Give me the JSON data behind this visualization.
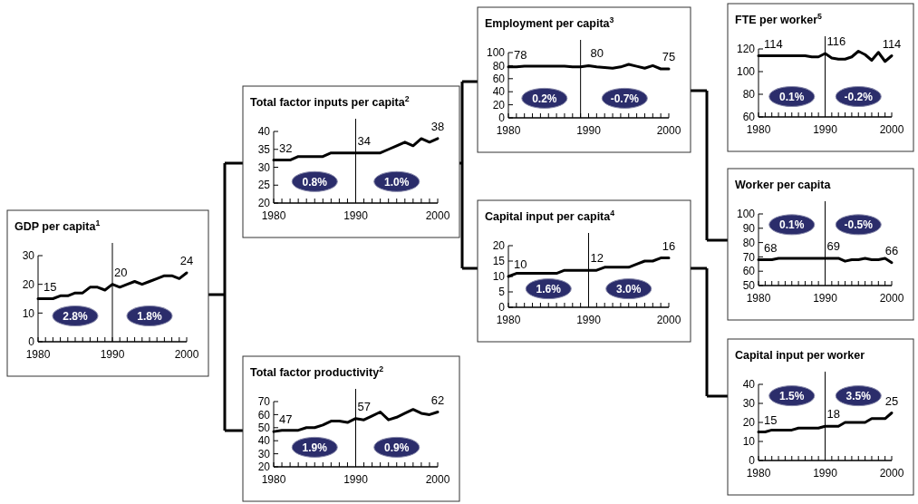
{
  "chart_data": [
    {
      "type": "line",
      "title": "GDP per capita$^{1}$",
      "x": [
        1980,
        1981,
        1982,
        1983,
        1984,
        1985,
        1986,
        1987,
        1988,
        1989,
        1990,
        1991,
        1992,
        1993,
        1994,
        1995,
        1996,
        1997,
        1998,
        1999,
        2000
      ],
      "values": [
        15,
        15,
        15,
        16,
        16,
        17,
        17,
        19,
        19,
        18,
        20,
        19,
        20,
        21,
        20,
        21,
        22,
        23,
        23,
        22,
        24
      ],
      "color": "#000000",
      "xlim": [
        1980,
        2000
      ],
      "ylim": [
        0,
        30
      ],
      "yticks": [
        0,
        10,
        20,
        30
      ],
      "xticks": [
        1980,
        {
          "value": 1981,
          "label": null
        },
        {
          "value": 1982,
          "label": null
        },
        {
          "value": 1983,
          "label": null
        },
        {
          "value": 1984,
          "label": null
        },
        {
          "value": 1985,
          "label": null
        },
        {
          "value": 1986,
          "label": null
        },
        {
          "value": 1987,
          "label": null
        },
        {
          "value": 1988,
          "label": null
        },
        {
          "value": 1989,
          "label": null
        },
        1990,
        {
          "value": 1991,
          "label": null
        },
        {
          "value": 1992,
          "label": null
        },
        {
          "value": 1993,
          "label": null
        },
        {
          "value": 1994,
          "label": null
        },
        {
          "value": 1995,
          "label": null
        },
        {
          "value": 1996,
          "label": null
        },
        {
          "value": 1997,
          "label": null
        },
        {
          "value": 1998,
          "label": null
        },
        {
          "value": 1999,
          "label": null
        },
        2000
      ],
      "ref_lines": [
        {
          "axis": "x",
          "value": 1990
        }
      ],
      "annotations": [
        {
          "text": "15",
          "x": 1980,
          "y": 15
        },
        {
          "text": "20",
          "x": 1990,
          "y": 20
        },
        {
          "text": "24",
          "x": 2000,
          "y": 24
        },
        "2.8%",
        "1.8%"
      ]
    },
    {
      "type": "line",
      "title": "Total factor inputs per capita$^{2}$",
      "x": [
        1980,
        1981,
        1982,
        1983,
        1984,
        1985,
        1986,
        1987,
        1988,
        1989,
        1990,
        1991,
        1992,
        1993,
        1994,
        1995,
        1996,
        1997,
        1998,
        1999,
        2000
      ],
      "values": [
        32,
        32,
        32,
        33,
        33,
        33,
        33,
        34,
        34,
        34,
        34,
        34,
        34,
        34,
        35,
        36,
        37,
        36,
        38,
        37,
        38
      ],
      "color": "#000000",
      "xlim": [
        1980,
        2000
      ],
      "ylim": [
        20,
        40
      ],
      "yticks": [
        20,
        25,
        30,
        35,
        40
      ],
      "xticks": [
        1980,
        {
          "value": 1981,
          "label": null
        },
        {
          "value": 1982,
          "label": null
        },
        {
          "value": 1983,
          "label": null
        },
        {
          "value": 1984,
          "label": null
        },
        {
          "value": 1985,
          "label": null
        },
        {
          "value": 1986,
          "label": null
        },
        {
          "value": 1987,
          "label": null
        },
        {
          "value": 1988,
          "label": null
        },
        {
          "value": 1989,
          "label": null
        },
        1990,
        {
          "value": 1991,
          "label": null
        },
        {
          "value": 1992,
          "label": null
        },
        {
          "value": 1993,
          "label": null
        },
        {
          "value": 1994,
          "label": null
        },
        {
          "value": 1995,
          "label": null
        },
        {
          "value": 1996,
          "label": null
        },
        {
          "value": 1997,
          "label": null
        },
        {
          "value": 1998,
          "label": null
        },
        {
          "value": 1999,
          "label": null
        },
        2000
      ],
      "ref_lines": [
        {
          "axis": "x",
          "value": 1990
        }
      ],
      "annotations": [
        {
          "text": "32",
          "x": 1980,
          "y": 32
        },
        {
          "text": "34",
          "x": 1990,
          "y": 34
        },
        {
          "text": "38",
          "x": 2000,
          "y": 38
        },
        "0.8%",
        "1.0%"
      ]
    },
    {
      "type": "line",
      "title": "Total factor productivity$^{2}$",
      "x": [
        1980,
        1981,
        1982,
        1983,
        1984,
        1985,
        1986,
        1987,
        1988,
        1989,
        1990,
        1991,
        1992,
        1993,
        1994,
        1995,
        1996,
        1997,
        1998,
        1999,
        2000
      ],
      "values": [
        47,
        48,
        48,
        48,
        50,
        50,
        52,
        55,
        55,
        54,
        57,
        56,
        59,
        62,
        56,
        58,
        61,
        64,
        61,
        60,
        62
      ],
      "color": "#000000",
      "xlim": [
        1980,
        2000
      ],
      "ylim": [
        20,
        70
      ],
      "yticks": [
        20,
        30,
        40,
        50,
        60,
        70
      ],
      "xticks": [
        1980,
        {
          "value": 1981,
          "label": null
        },
        {
          "value": 1982,
          "label": null
        },
        {
          "value": 1983,
          "label": null
        },
        {
          "value": 1984,
          "label": null
        },
        {
          "value": 1985,
          "label": null
        },
        {
          "value": 1986,
          "label": null
        },
        {
          "value": 1987,
          "label": null
        },
        {
          "value": 1988,
          "label": null
        },
        {
          "value": 1989,
          "label": null
        },
        1990,
        {
          "value": 1991,
          "label": null
        },
        {
          "value": 1992,
          "label": null
        },
        {
          "value": 1993,
          "label": null
        },
        {
          "value": 1994,
          "label": null
        },
        {
          "value": 1995,
          "label": null
        },
        {
          "value": 1996,
          "label": null
        },
        {
          "value": 1997,
          "label": null
        },
        {
          "value": 1998,
          "label": null
        },
        {
          "value": 1999,
          "label": null
        },
        2000
      ],
      "ref_lines": [
        {
          "axis": "x",
          "value": 1990
        }
      ],
      "annotations": [
        {
          "text": "47",
          "x": 1980,
          "y": 47
        },
        {
          "text": "57",
          "x": 1990,
          "y": 57
        },
        {
          "text": "62",
          "x": 2000,
          "y": 62
        },
        "1.9%",
        "0.9%"
      ]
    },
    {
      "type": "line",
      "title": "Employment per capita$^{3}$",
      "x": [
        1980,
        1981,
        1982,
        1983,
        1984,
        1985,
        1986,
        1987,
        1988,
        1989,
        1990,
        1991,
        1992,
        1993,
        1994,
        1995,
        1996,
        1997,
        1998,
        1999,
        2000
      ],
      "values": [
        78,
        78,
        79,
        79,
        79,
        79,
        79,
        79,
        78,
        78,
        80,
        78,
        77,
        76,
        78,
        82,
        79,
        76,
        80,
        75,
        75
      ],
      "color": "#000000",
      "xlim": [
        1980,
        2000
      ],
      "ylim": [
        0,
        100
      ],
      "yticks": [
        0,
        20,
        40,
        60,
        80,
        100
      ],
      "xticks": [
        1980,
        {
          "value": 1981,
          "label": null
        },
        {
          "value": 1982,
          "label": null
        },
        {
          "value": 1983,
          "label": null
        },
        {
          "value": 1984,
          "label": null
        },
        {
          "value": 1985,
          "label": null
        },
        {
          "value": 1986,
          "label": null
        },
        {
          "value": 1987,
          "label": null
        },
        {
          "value": 1988,
          "label": null
        },
        {
          "value": 1989,
          "label": null
        },
        1990,
        {
          "value": 1991,
          "label": null
        },
        {
          "value": 1992,
          "label": null
        },
        {
          "value": 1993,
          "label": null
        },
        {
          "value": 1994,
          "label": null
        },
        {
          "value": 1995,
          "label": null
        },
        {
          "value": 1996,
          "label": null
        },
        {
          "value": 1997,
          "label": null
        },
        {
          "value": 1998,
          "label": null
        },
        {
          "value": 1999,
          "label": null
        },
        2000
      ],
      "ref_lines": [
        {
          "axis": "x",
          "value": 1989
        }
      ],
      "annotations": [
        {
          "text": "78",
          "x": 1980,
          "y": 78
        },
        {
          "text": "80",
          "x": 1990,
          "y": 80
        },
        {
          "text": "75",
          "x": 2000,
          "y": 75
        },
        "0.2%",
        "-0.7%"
      ]
    },
    {
      "type": "line",
      "title": "Capital input per capita$^{4}$",
      "x": [
        1980,
        1981,
        1982,
        1983,
        1984,
        1985,
        1986,
        1987,
        1988,
        1989,
        1990,
        1991,
        1992,
        1993,
        1994,
        1995,
        1996,
        1997,
        1998,
        1999,
        2000
      ],
      "values": [
        10,
        11,
        11,
        11,
        11,
        11,
        11,
        12,
        12,
        12,
        12,
        12,
        13,
        13,
        13,
        13,
        14,
        15,
        15,
        16,
        16
      ],
      "color": "#000000",
      "xlim": [
        1980,
        2000
      ],
      "ylim": [
        0,
        20
      ],
      "yticks": [
        0,
        5,
        10,
        15,
        20
      ],
      "xticks": [
        1980,
        {
          "value": 1981,
          "label": null
        },
        {
          "value": 1982,
          "label": null
        },
        {
          "value": 1983,
          "label": null
        },
        {
          "value": 1984,
          "label": null
        },
        {
          "value": 1985,
          "label": null
        },
        {
          "value": 1986,
          "label": null
        },
        {
          "value": 1987,
          "label": null
        },
        {
          "value": 1988,
          "label": null
        },
        {
          "value": 1989,
          "label": null
        },
        1990,
        {
          "value": 1991,
          "label": null
        },
        {
          "value": 1992,
          "label": null
        },
        {
          "value": 1993,
          "label": null
        },
        {
          "value": 1994,
          "label": null
        },
        {
          "value": 1995,
          "label": null
        },
        {
          "value": 1996,
          "label": null
        },
        {
          "value": 1997,
          "label": null
        },
        {
          "value": 1998,
          "label": null
        },
        {
          "value": 1999,
          "label": null
        },
        2000
      ],
      "ref_lines": [
        {
          "axis": "x",
          "value": 1990
        }
      ],
      "annotations": [
        {
          "text": "10",
          "x": 1980,
          "y": 10
        },
        {
          "text": "12",
          "x": 1990,
          "y": 12
        },
        {
          "text": "16",
          "x": 2000,
          "y": 16
        },
        "1.6%",
        "3.0%"
      ]
    },
    {
      "type": "line",
      "title": "FTE per worker$^{5}$",
      "x": [
        1980,
        1981,
        1982,
        1983,
        1984,
        1985,
        1986,
        1987,
        1988,
        1989,
        1990,
        1991,
        1992,
        1993,
        1994,
        1995,
        1996,
        1997,
        1998,
        1999,
        2000
      ],
      "values": [
        114,
        114,
        114,
        114,
        114,
        114,
        114,
        114,
        113,
        113,
        116,
        112,
        111,
        111,
        113,
        118,
        115,
        110,
        117,
        109,
        114
      ],
      "color": "#000000",
      "xlim": [
        1980,
        2000
      ],
      "ylim": [
        60,
        120
      ],
      "yticks": [
        60,
        80,
        100,
        120
      ],
      "xticks": [
        1980,
        {
          "value": 1981,
          "label": null
        },
        {
          "value": 1982,
          "label": null
        },
        {
          "value": 1983,
          "label": null
        },
        {
          "value": 1984,
          "label": null
        },
        {
          "value": 1985,
          "label": null
        },
        {
          "value": 1986,
          "label": null
        },
        {
          "value": 1987,
          "label": null
        },
        {
          "value": 1988,
          "label": null
        },
        {
          "value": 1989,
          "label": null
        },
        1990,
        {
          "value": 1991,
          "label": null
        },
        {
          "value": 1992,
          "label": null
        },
        {
          "value": 1993,
          "label": null
        },
        {
          "value": 1994,
          "label": null
        },
        {
          "value": 1995,
          "label": null
        },
        {
          "value": 1996,
          "label": null
        },
        {
          "value": 1997,
          "label": null
        },
        {
          "value": 1998,
          "label": null
        },
        {
          "value": 1999,
          "label": null
        },
        2000
      ],
      "ref_lines": [
        {
          "axis": "x",
          "value": 1990
        }
      ],
      "annotations": [
        {
          "text": "114",
          "x": 1980,
          "y": 114
        },
        {
          "text": "116",
          "x": 1990,
          "y": 116
        },
        {
          "text": "114",
          "x": 2000,
          "y": 114
        },
        "0.1%",
        "-0.2%"
      ]
    },
    {
      "type": "line",
      "title": "Worker per capita",
      "x": [
        1980,
        1981,
        1982,
        1983,
        1984,
        1985,
        1986,
        1987,
        1988,
        1989,
        1990,
        1991,
        1992,
        1993,
        1994,
        1995,
        1996,
        1997,
        1998,
        1999,
        2000
      ],
      "values": [
        68,
        68,
        68,
        69,
        69,
        69,
        69,
        69,
        69,
        69,
        69,
        69,
        69,
        67,
        68,
        68,
        69,
        68,
        68,
        69,
        66
      ],
      "color": "#000000",
      "xlim": [
        1980,
        2000
      ],
      "ylim": [
        50,
        100
      ],
      "yticks": [
        50,
        60,
        70,
        80,
        90,
        100
      ],
      "xticks": [
        1980,
        {
          "value": 1981,
          "label": null
        },
        {
          "value": 1982,
          "label": null
        },
        {
          "value": 1983,
          "label": null
        },
        {
          "value": 1984,
          "label": null
        },
        {
          "value": 1985,
          "label": null
        },
        {
          "value": 1986,
          "label": null
        },
        {
          "value": 1987,
          "label": null
        },
        {
          "value": 1988,
          "label": null
        },
        {
          "value": 1989,
          "label": null
        },
        1990,
        {
          "value": 1991,
          "label": null
        },
        {
          "value": 1992,
          "label": null
        },
        {
          "value": 1993,
          "label": null
        },
        {
          "value": 1994,
          "label": null
        },
        {
          "value": 1995,
          "label": null
        },
        {
          "value": 1996,
          "label": null
        },
        {
          "value": 1997,
          "label": null
        },
        {
          "value": 1998,
          "label": null
        },
        {
          "value": 1999,
          "label": null
        },
        2000
      ],
      "ref_lines": [
        {
          "axis": "x",
          "value": 1990
        }
      ],
      "annotations": [
        {
          "text": "68",
          "x": 1980,
          "y": 68
        },
        {
          "text": "69",
          "x": 1990,
          "y": 69
        },
        {
          "text": "66",
          "x": 2000,
          "y": 66
        },
        "0.1%",
        "-0.5%"
      ]
    },
    {
      "type": "line",
      "title": "Capital input per worker",
      "x": [
        1980,
        1981,
        1982,
        1983,
        1984,
        1985,
        1986,
        1987,
        1988,
        1989,
        1990,
        1991,
        1992,
        1993,
        1994,
        1995,
        1996,
        1997,
        1998,
        1999,
        2000
      ],
      "values": [
        15,
        15,
        16,
        16,
        16,
        16,
        17,
        17,
        17,
        17,
        18,
        18,
        18,
        20,
        20,
        20,
        20,
        22,
        22,
        22,
        25
      ],
      "color": "#000000",
      "xlim": [
        1980,
        2000
      ],
      "ylim": [
        0,
        40
      ],
      "yticks": [
        0,
        10,
        20,
        30,
        40
      ],
      "xticks": [
        1980,
        {
          "value": 1981,
          "label": null
        },
        {
          "value": 1982,
          "label": null
        },
        {
          "value": 1983,
          "label": null
        },
        {
          "value": 1984,
          "label": null
        },
        {
          "value": 1985,
          "label": null
        },
        {
          "value": 1986,
          "label": null
        },
        {
          "value": 1987,
          "label": null
        },
        {
          "value": 1988,
          "label": null
        },
        {
          "value": 1989,
          "label": null
        },
        1990,
        {
          "value": 1991,
          "label": null
        },
        {
          "value": 1992,
          "label": null
        },
        {
          "value": 1993,
          "label": null
        },
        {
          "value": 1994,
          "label": null
        },
        {
          "value": 1995,
          "label": null
        },
        {
          "value": 1996,
          "label": null
        },
        {
          "value": 1997,
          "label": null
        },
        {
          "value": 1998,
          "label": null
        },
        {
          "value": 1999,
          "label": null
        },
        2000
      ],
      "ref_lines": [
        {
          "axis": "x",
          "value": 1990
        }
      ],
      "annotations": [
        {
          "text": "15",
          "x": 1980,
          "y": 15
        },
        {
          "text": "18",
          "x": 1990,
          "y": 18
        },
        {
          "text": "25",
          "x": 2000,
          "y": 25
        },
        "1.5%",
        "3.5%"
      ]
    }
  ]
}
